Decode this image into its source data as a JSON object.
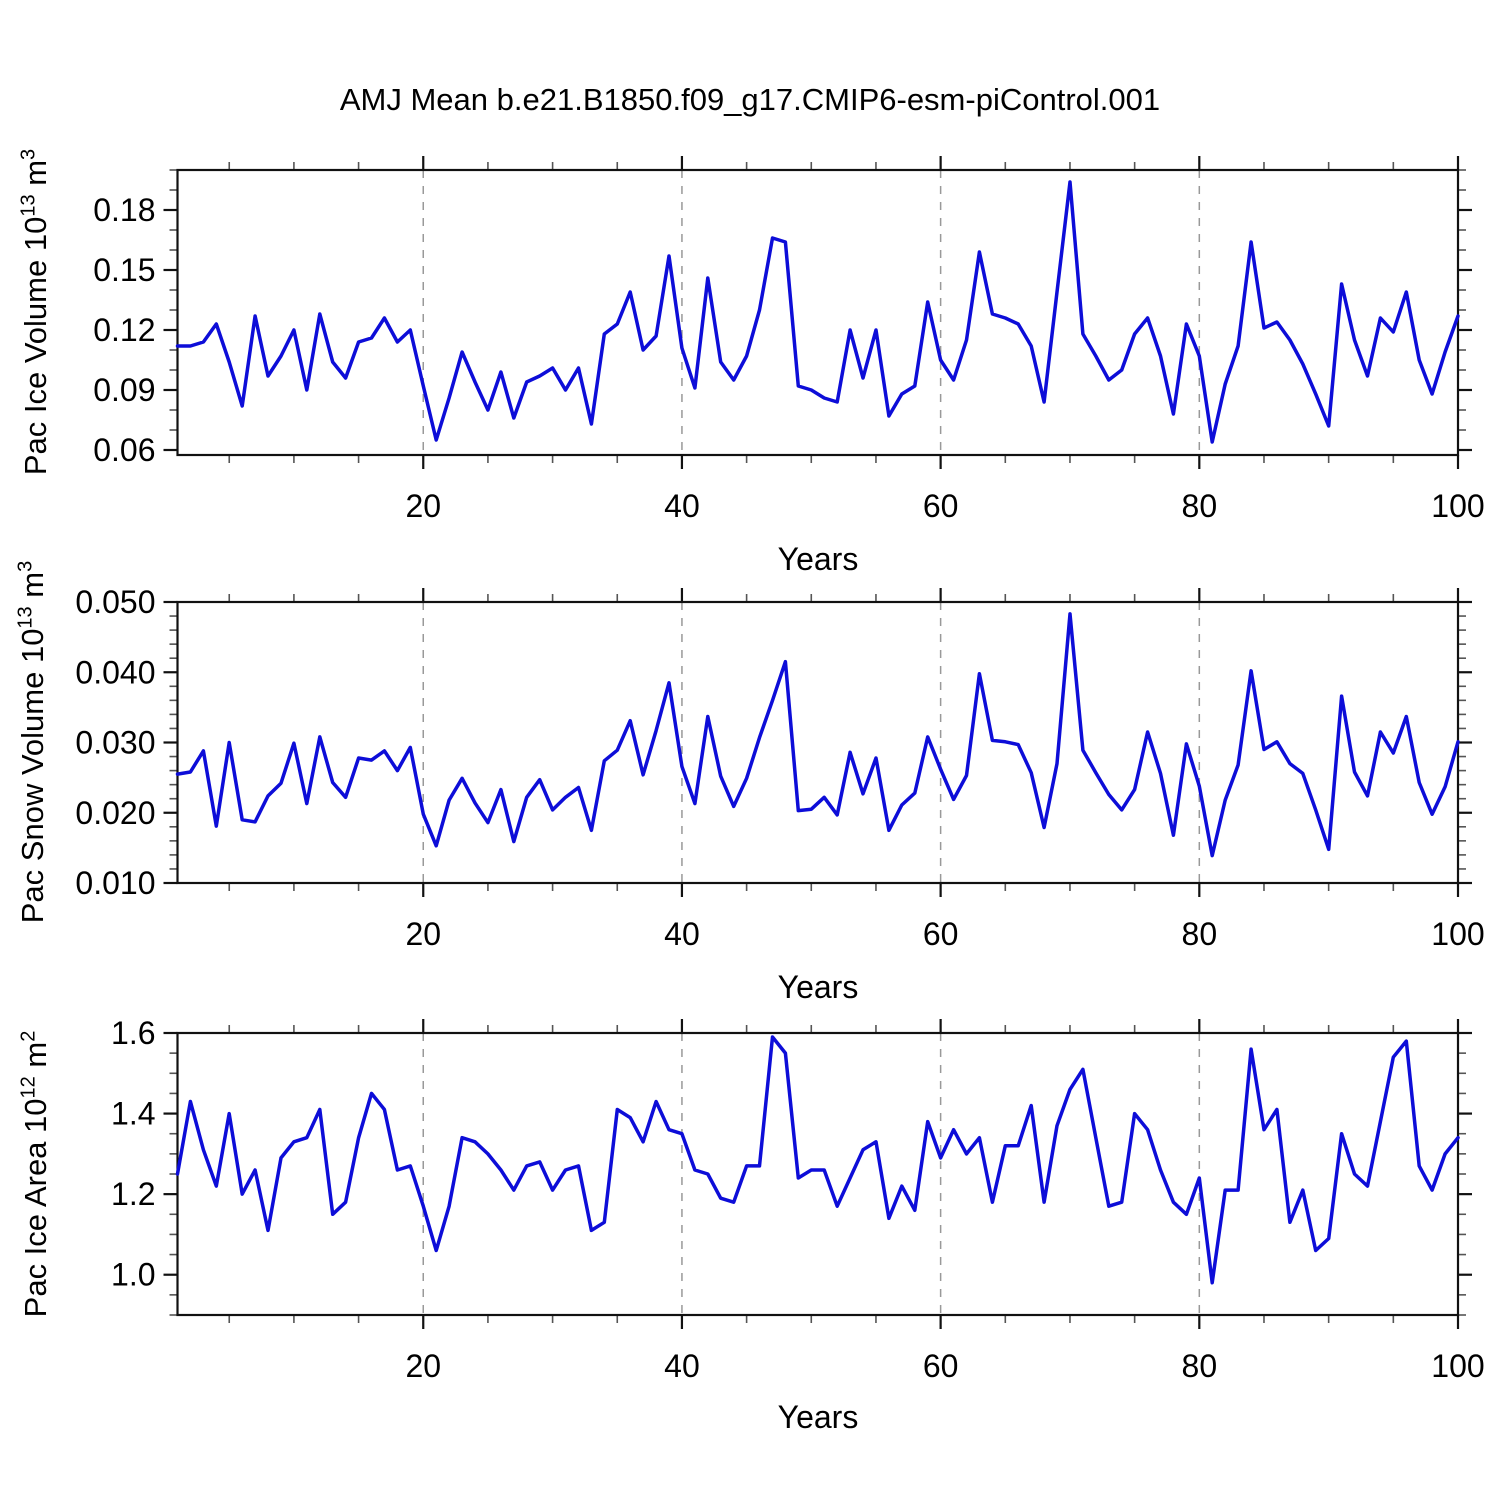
{
  "page": {
    "title": "AMJ Mean b.e21.B1850.f09_g17.CMIP6-esm-piControl.001"
  },
  "colors": {
    "line": "#0d0dd8",
    "axis": "#111111",
    "grid": "#999999",
    "minor_tick": "#555555",
    "background": "#ffffff"
  },
  "chart_data": [
    {
      "type": "line",
      "name": "pac-ice-volume",
      "ylabel_parts": [
        [
          "Pac Ice Volume 10",
          false
        ],
        [
          "13",
          true
        ],
        [
          " m",
          false
        ],
        [
          "3",
          true
        ]
      ],
      "xlabel": "Years",
      "x_start": 1,
      "x_end": 100,
      "ylim": [
        0.0575,
        0.2
      ],
      "yticks": {
        "values": [
          0.06,
          0.09,
          0.12,
          0.15,
          0.18
        ],
        "labels": [
          "0.06",
          "0.09",
          "0.12",
          "0.15",
          "0.18"
        ],
        "minor_step": 0.01
      },
      "xticks": {
        "values": [
          20,
          40,
          60,
          80,
          100
        ],
        "labels": [
          "20",
          "40",
          "60",
          "80",
          "100"
        ],
        "minor_step": 5
      },
      "grid_x": [
        20,
        40,
        60,
        80
      ],
      "values": [
        0.112,
        0.112,
        0.114,
        0.123,
        0.104,
        0.082,
        0.127,
        0.097,
        0.107,
        0.12,
        0.09,
        0.128,
        0.104,
        0.096,
        0.114,
        0.116,
        0.126,
        0.114,
        0.12,
        0.092,
        0.065,
        0.086,
        0.109,
        0.094,
        0.08,
        0.099,
        0.076,
        0.094,
        0.097,
        0.101,
        0.09,
        0.101,
        0.073,
        0.118,
        0.123,
        0.139,
        0.11,
        0.117,
        0.157,
        0.111,
        0.091,
        0.146,
        0.104,
        0.095,
        0.107,
        0.13,
        0.166,
        0.164,
        0.092,
        0.09,
        0.086,
        0.084,
        0.12,
        0.096,
        0.12,
        0.077,
        0.088,
        0.092,
        0.134,
        0.105,
        0.095,
        0.115,
        0.159,
        0.128,
        0.126,
        0.123,
        0.112,
        0.084,
        0.139,
        0.194,
        0.118,
        0.107,
        0.095,
        0.1,
        0.118,
        0.126,
        0.107,
        0.078,
        0.123,
        0.107,
        0.064,
        0.093,
        0.112,
        0.164,
        0.121,
        0.124,
        0.115,
        0.103,
        0.088,
        0.072,
        0.143,
        0.115,
        0.097,
        0.126,
        0.119,
        0.139,
        0.105,
        0.088,
        0.109,
        0.127
      ]
    },
    {
      "type": "line",
      "name": "pac-snow-volume",
      "ylabel_parts": [
        [
          "Pac Snow Volume 10",
          false
        ],
        [
          "13",
          true
        ],
        [
          " m",
          false
        ],
        [
          "3",
          true
        ]
      ],
      "xlabel": "Years",
      "x_start": 1,
      "x_end": 100,
      "ylim": [
        0.01,
        0.05
      ],
      "yticks": {
        "values": [
          0.01,
          0.02,
          0.03,
          0.04,
          0.05
        ],
        "labels": [
          "0.010",
          "0.020",
          "0.030",
          "0.040",
          "0.050"
        ],
        "minor_step": 0.002
      },
      "xticks": {
        "values": [
          20,
          40,
          60,
          80,
          100
        ],
        "labels": [
          "20",
          "40",
          "60",
          "80",
          "100"
        ],
        "minor_step": 5
      },
      "grid_x": [
        20,
        40,
        60,
        80
      ],
      "values": [
        0.0255,
        0.0258,
        0.0288,
        0.0181,
        0.03,
        0.019,
        0.0187,
        0.0224,
        0.0242,
        0.0299,
        0.0213,
        0.0308,
        0.0243,
        0.0222,
        0.0278,
        0.0275,
        0.0288,
        0.026,
        0.0293,
        0.0198,
        0.0153,
        0.0218,
        0.0249,
        0.0214,
        0.0186,
        0.0233,
        0.0159,
        0.0222,
        0.0247,
        0.0204,
        0.0222,
        0.0236,
        0.0175,
        0.0274,
        0.0289,
        0.0331,
        0.0254,
        0.0317,
        0.0385,
        0.0266,
        0.0213,
        0.0337,
        0.0252,
        0.0209,
        0.0249,
        0.0307,
        0.036,
        0.0415,
        0.0203,
        0.0205,
        0.0222,
        0.0197,
        0.0286,
        0.0227,
        0.0278,
        0.0175,
        0.0211,
        0.0228,
        0.0308,
        0.0262,
        0.0219,
        0.0253,
        0.0398,
        0.0303,
        0.0301,
        0.0297,
        0.0257,
        0.0179,
        0.027,
        0.0483,
        0.0289,
        0.0257,
        0.0226,
        0.0204,
        0.0233,
        0.0315,
        0.0256,
        0.0168,
        0.0298,
        0.0238,
        0.0139,
        0.0218,
        0.0268,
        0.0402,
        0.029,
        0.0301,
        0.027,
        0.0256,
        0.0204,
        0.0148,
        0.0366,
        0.0258,
        0.0224,
        0.0315,
        0.0285,
        0.0337,
        0.0243,
        0.0198,
        0.0237,
        0.0301
      ]
    },
    {
      "type": "line",
      "name": "pac-ice-area",
      "ylabel_parts": [
        [
          "Pac Ice Area 10",
          false
        ],
        [
          "12",
          true
        ],
        [
          " m",
          false
        ],
        [
          "2",
          true
        ]
      ],
      "xlabel": "Years",
      "x_start": 1,
      "x_end": 100,
      "ylim": [
        0.9,
        1.6
      ],
      "yticks": {
        "values": [
          1.0,
          1.2,
          1.4,
          1.6
        ],
        "labels": [
          "1.0",
          "1.2",
          "1.4",
          "1.6"
        ],
        "minor_step": 0.05
      },
      "xticks": {
        "values": [
          20,
          40,
          60,
          80,
          100
        ],
        "labels": [
          "20",
          "40",
          "60",
          "80",
          "100"
        ],
        "minor_step": 5
      },
      "grid_x": [
        20,
        40,
        60,
        80
      ],
      "values": [
        1.25,
        1.43,
        1.31,
        1.22,
        1.4,
        1.2,
        1.26,
        1.11,
        1.29,
        1.33,
        1.34,
        1.41,
        1.15,
        1.18,
        1.34,
        1.45,
        1.41,
        1.26,
        1.27,
        1.17,
        1.06,
        1.17,
        1.34,
        1.33,
        1.3,
        1.26,
        1.21,
        1.27,
        1.28,
        1.21,
        1.26,
        1.27,
        1.11,
        1.13,
        1.41,
        1.39,
        1.33,
        1.43,
        1.36,
        1.35,
        1.26,
        1.25,
        1.19,
        1.18,
        1.27,
        1.27,
        1.59,
        1.55,
        1.24,
        1.26,
        1.26,
        1.17,
        1.24,
        1.31,
        1.33,
        1.14,
        1.22,
        1.16,
        1.38,
        1.29,
        1.36,
        1.3,
        1.34,
        1.18,
        1.32,
        1.32,
        1.42,
        1.18,
        1.37,
        1.46,
        1.51,
        1.34,
        1.17,
        1.18,
        1.4,
        1.36,
        1.26,
        1.18,
        1.15,
        1.24,
        0.98,
        1.21,
        1.21,
        1.56,
        1.36,
        1.41,
        1.13,
        1.21,
        1.06,
        1.09,
        1.35,
        1.25,
        1.22,
        1.38,
        1.54,
        1.58,
        1.27,
        1.21,
        1.3,
        1.34
      ]
    }
  ]
}
